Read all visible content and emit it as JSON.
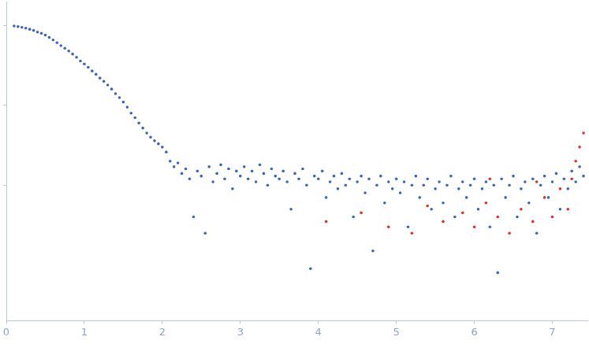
{
  "chart_data": {
    "type": "scatter",
    "log": "y",
    "grid": false,
    "tick_labels": "x",
    "xlim": [
      0,
      7.45
    ],
    "xticks": [
      0,
      1,
      2,
      3,
      4,
      5,
      6,
      7
    ],
    "ylim": [
      0.0002,
      2
    ],
    "yticks": [
      0.01,
      0.1,
      1
    ],
    "series": [
      {
        "color": "#3a66b8",
        "marker": "circle",
        "x": [
          0.1,
          0.15,
          0.2,
          0.25,
          0.3,
          0.35,
          0.4,
          0.45,
          0.5,
          0.55,
          0.6,
          0.65,
          0.7,
          0.75,
          0.8,
          0.85,
          0.9,
          0.95,
          1.0,
          1.05,
          1.1,
          1.15,
          1.2,
          1.25,
          1.3,
          1.35,
          1.4,
          1.45,
          1.5,
          1.55,
          1.6,
          1.65,
          1.7,
          1.75,
          1.8,
          1.85,
          1.9,
          1.95,
          2.0,
          2.05,
          2.1,
          2.15,
          2.2,
          2.25,
          2.3,
          2.35,
          2.4,
          2.45,
          2.5,
          2.55,
          2.6,
          2.65,
          2.7,
          2.75,
          2.8,
          2.85,
          2.9,
          2.95,
          3.0,
          3.05,
          3.1,
          3.15,
          3.2,
          3.25,
          3.3,
          3.35,
          3.4,
          3.45,
          3.5,
          3.55,
          3.6,
          3.65,
          3.7,
          3.75,
          3.8,
          3.85,
          3.9,
          3.95,
          4.0,
          4.05,
          4.1,
          4.15,
          4.2,
          4.25,
          4.3,
          4.35,
          4.4,
          4.45,
          4.5,
          4.55,
          4.6,
          4.65,
          4.7,
          4.75,
          4.8,
          4.85,
          4.9,
          4.95,
          5.0,
          5.05,
          5.1,
          5.15,
          5.2,
          5.25,
          5.3,
          5.35,
          5.4,
          5.45,
          5.5,
          5.55,
          5.6,
          5.65,
          5.7,
          5.75,
          5.8,
          5.85,
          5.9,
          5.95,
          6.0,
          6.05,
          6.1,
          6.15,
          6.2,
          6.25,
          6.3,
          6.35,
          6.4,
          6.45,
          6.5,
          6.55,
          6.6,
          6.65,
          6.7,
          6.75,
          6.8,
          6.85,
          6.9,
          6.95,
          7.0,
          7.05,
          7.1,
          7.15,
          7.2,
          7.25,
          7.3,
          7.35,
          7.4
        ],
        "values": [
          0.99,
          0.97,
          0.95,
          0.93,
          0.9,
          0.87,
          0.83,
          0.8,
          0.76,
          0.71,
          0.66,
          0.61,
          0.56,
          0.52,
          0.48,
          0.44,
          0.4,
          0.36,
          0.33,
          0.3,
          0.27,
          0.245,
          0.22,
          0.2,
          0.18,
          0.16,
          0.14,
          0.125,
          0.11,
          0.095,
          0.08,
          0.07,
          0.06,
          0.052,
          0.045,
          0.04,
          0.036,
          0.033,
          0.03,
          0.026,
          0.02,
          0.017,
          0.019,
          0.014,
          0.016,
          0.012,
          0.004,
          0.015,
          0.013,
          0.0025,
          0.017,
          0.011,
          0.014,
          0.018,
          0.012,
          0.016,
          0.009,
          0.015,
          0.013,
          0.017,
          0.012,
          0.015,
          0.011,
          0.018,
          0.014,
          0.01,
          0.016,
          0.013,
          0.012,
          0.015,
          0.011,
          0.005,
          0.014,
          0.012,
          0.016,
          0.01,
          0.0009,
          0.013,
          0.012,
          0.015,
          0.007,
          0.011,
          0.013,
          0.009,
          0.014,
          0.01,
          0.012,
          0.004,
          0.011,
          0.013,
          0.008,
          0.012,
          0.0015,
          0.01,
          0.013,
          0.006,
          0.011,
          0.009,
          0.012,
          0.008,
          0.011,
          0.003,
          0.01,
          0.013,
          0.007,
          0.01,
          0.012,
          0.005,
          0.009,
          0.011,
          0.006,
          0.01,
          0.013,
          0.004,
          0.009,
          0.011,
          0.007,
          0.01,
          0.012,
          0.005,
          0.009,
          0.011,
          0.003,
          0.01,
          0.0008,
          0.012,
          0.007,
          0.01,
          0.013,
          0.004,
          0.009,
          0.011,
          0.006,
          0.012,
          0.0025,
          0.01,
          0.013,
          0.007,
          0.011,
          0.014,
          0.005,
          0.012,
          0.009,
          0.015,
          0.011,
          0.017,
          0.013
        ]
      },
      {
        "color": "#e0302a",
        "marker": "circle",
        "x": [
          4.1,
          4.55,
          4.9,
          5.2,
          5.4,
          5.6,
          5.85,
          6.0,
          6.15,
          6.2,
          6.3,
          6.45,
          6.6,
          6.75,
          6.8,
          6.9,
          7.0,
          7.1,
          7.2,
          7.25,
          7.3,
          7.35,
          7.4
        ],
        "values": [
          0.0035,
          0.0045,
          0.003,
          0.0025,
          0.0055,
          0.0035,
          0.0045,
          0.003,
          0.006,
          0.012,
          0.004,
          0.0025,
          0.005,
          0.0035,
          0.011,
          0.007,
          0.004,
          0.009,
          0.005,
          0.012,
          0.02,
          0.03,
          0.045
        ]
      }
    ]
  }
}
